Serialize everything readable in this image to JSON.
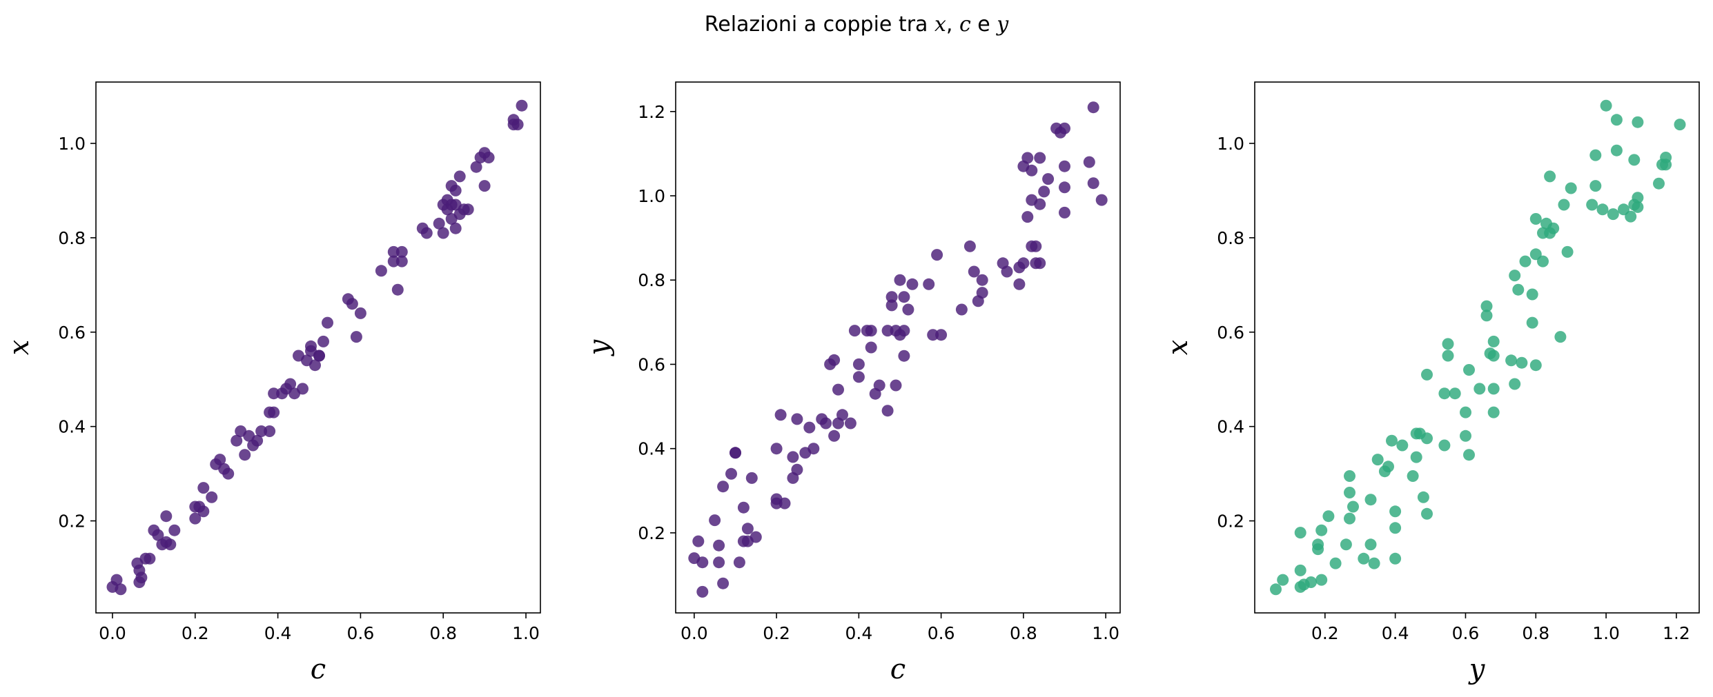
{
  "figure": {
    "title_prefix": "Relazioni a coppie tra ",
    "title_vars": [
      "x",
      ", ",
      "c",
      " e ",
      "y"
    ]
  },
  "colors": {
    "purple": "#4b1d78",
    "green": "#2eaa7c"
  },
  "chart_data": [
    {
      "type": "scatter",
      "title": "",
      "xlabel": "c",
      "ylabel": "x",
      "color": "#4b1d78",
      "xlim": [
        -0.04,
        1.035
      ],
      "ylim": [
        0.005,
        1.13
      ],
      "xticks": [
        "0.0",
        "0.2",
        "0.4",
        "0.6",
        "0.8",
        "1.0"
      ],
      "yticks": [
        "0.2",
        "0.4",
        "0.6",
        "0.8",
        "1.0"
      ],
      "points": [
        [
          0.0,
          0.06
        ],
        [
          0.01,
          0.075
        ],
        [
          0.02,
          0.055
        ],
        [
          0.06,
          0.11
        ],
        [
          0.065,
          0.095
        ],
        [
          0.07,
          0.08
        ],
        [
          0.065,
          0.07
        ],
        [
          0.08,
          0.12
        ],
        [
          0.09,
          0.12
        ],
        [
          0.1,
          0.18
        ],
        [
          0.11,
          0.17
        ],
        [
          0.12,
          0.15
        ],
        [
          0.13,
          0.21
        ],
        [
          0.13,
          0.155
        ],
        [
          0.14,
          0.15
        ],
        [
          0.15,
          0.18
        ],
        [
          0.2,
          0.205
        ],
        [
          0.2,
          0.23
        ],
        [
          0.21,
          0.23
        ],
        [
          0.22,
          0.27
        ],
        [
          0.22,
          0.22
        ],
        [
          0.24,
          0.25
        ],
        [
          0.25,
          0.32
        ],
        [
          0.26,
          0.33
        ],
        [
          0.27,
          0.31
        ],
        [
          0.28,
          0.3
        ],
        [
          0.3,
          0.37
        ],
        [
          0.31,
          0.39
        ],
        [
          0.32,
          0.34
        ],
        [
          0.33,
          0.38
        ],
        [
          0.34,
          0.36
        ],
        [
          0.35,
          0.37
        ],
        [
          0.36,
          0.39
        ],
        [
          0.38,
          0.39
        ],
        [
          0.38,
          0.43
        ],
        [
          0.39,
          0.47
        ],
        [
          0.39,
          0.43
        ],
        [
          0.41,
          0.47
        ],
        [
          0.42,
          0.48
        ],
        [
          0.43,
          0.49
        ],
        [
          0.44,
          0.47
        ],
        [
          0.45,
          0.55
        ],
        [
          0.46,
          0.48
        ],
        [
          0.47,
          0.54
        ],
        [
          0.48,
          0.56
        ],
        [
          0.48,
          0.57
        ],
        [
          0.49,
          0.53
        ],
        [
          0.5,
          0.55
        ],
        [
          0.5,
          0.55
        ],
        [
          0.51,
          0.58
        ],
        [
          0.52,
          0.62
        ],
        [
          0.57,
          0.67
        ],
        [
          0.58,
          0.66
        ],
        [
          0.59,
          0.59
        ],
        [
          0.6,
          0.64
        ],
        [
          0.65,
          0.73
        ],
        [
          0.68,
          0.77
        ],
        [
          0.68,
          0.75
        ],
        [
          0.69,
          0.69
        ],
        [
          0.7,
          0.77
        ],
        [
          0.7,
          0.75
        ],
        [
          0.75,
          0.82
        ],
        [
          0.76,
          0.81
        ],
        [
          0.79,
          0.83
        ],
        [
          0.8,
          0.81
        ],
        [
          0.8,
          0.87
        ],
        [
          0.81,
          0.88
        ],
        [
          0.81,
          0.86
        ],
        [
          0.82,
          0.87
        ],
        [
          0.82,
          0.84
        ],
        [
          0.82,
          0.91
        ],
        [
          0.83,
          0.82
        ],
        [
          0.83,
          0.87
        ],
        [
          0.83,
          0.9
        ],
        [
          0.84,
          0.85
        ],
        [
          0.84,
          0.93
        ],
        [
          0.85,
          0.86
        ],
        [
          0.86,
          0.86
        ],
        [
          0.88,
          0.95
        ],
        [
          0.89,
          0.97
        ],
        [
          0.9,
          0.98
        ],
        [
          0.9,
          0.91
        ],
        [
          0.91,
          0.97
        ],
        [
          0.97,
          1.04
        ],
        [
          0.97,
          1.05
        ],
        [
          0.98,
          1.04
        ],
        [
          0.99,
          1.08
        ]
      ]
    },
    {
      "type": "scatter",
      "title": "",
      "xlabel": "c",
      "ylabel": "y",
      "color": "#4b1d78",
      "xlim": [
        -0.045,
        1.035
      ],
      "ylim": [
        0.01,
        1.27
      ],
      "xticks": [
        "0.0",
        "0.2",
        "0.4",
        "0.6",
        "0.8",
        "1.0"
      ],
      "yticks": [
        "0.2",
        "0.4",
        "0.6",
        "0.8",
        "1.0",
        "1.2"
      ],
      "points": [
        [
          0.0,
          0.14
        ],
        [
          0.01,
          0.18
        ],
        [
          0.02,
          0.06
        ],
        [
          0.02,
          0.13
        ],
        [
          0.05,
          0.23
        ],
        [
          0.06,
          0.17
        ],
        [
          0.06,
          0.13
        ],
        [
          0.07,
          0.31
        ],
        [
          0.07,
          0.08
        ],
        [
          0.09,
          0.34
        ],
        [
          0.1,
          0.39
        ],
        [
          0.1,
          0.39
        ],
        [
          0.11,
          0.13
        ],
        [
          0.12,
          0.18
        ],
        [
          0.12,
          0.26
        ],
        [
          0.13,
          0.18
        ],
        [
          0.13,
          0.21
        ],
        [
          0.14,
          0.33
        ],
        [
          0.15,
          0.19
        ],
        [
          0.2,
          0.27
        ],
        [
          0.2,
          0.28
        ],
        [
          0.2,
          0.4
        ],
        [
          0.21,
          0.48
        ],
        [
          0.22,
          0.27
        ],
        [
          0.24,
          0.33
        ],
        [
          0.24,
          0.38
        ],
        [
          0.25,
          0.35
        ],
        [
          0.25,
          0.47
        ],
        [
          0.27,
          0.39
        ],
        [
          0.28,
          0.45
        ],
        [
          0.29,
          0.4
        ],
        [
          0.31,
          0.47
        ],
        [
          0.32,
          0.46
        ],
        [
          0.33,
          0.6
        ],
        [
          0.34,
          0.61
        ],
        [
          0.34,
          0.43
        ],
        [
          0.35,
          0.46
        ],
        [
          0.35,
          0.54
        ],
        [
          0.36,
          0.48
        ],
        [
          0.38,
          0.46
        ],
        [
          0.39,
          0.68
        ],
        [
          0.4,
          0.6
        ],
        [
          0.4,
          0.57
        ],
        [
          0.42,
          0.68
        ],
        [
          0.43,
          0.68
        ],
        [
          0.43,
          0.64
        ],
        [
          0.44,
          0.53
        ],
        [
          0.45,
          0.55
        ],
        [
          0.47,
          0.49
        ],
        [
          0.47,
          0.68
        ],
        [
          0.48,
          0.76
        ],
        [
          0.48,
          0.74
        ],
        [
          0.49,
          0.68
        ],
        [
          0.49,
          0.55
        ],
        [
          0.5,
          0.8
        ],
        [
          0.5,
          0.67
        ],
        [
          0.51,
          0.62
        ],
        [
          0.51,
          0.76
        ],
        [
          0.51,
          0.68
        ],
        [
          0.52,
          0.73
        ],
        [
          0.53,
          0.79
        ],
        [
          0.57,
          0.79
        ],
        [
          0.58,
          0.67
        ],
        [
          0.59,
          0.86
        ],
        [
          0.6,
          0.67
        ],
        [
          0.65,
          0.73
        ],
        [
          0.67,
          0.88
        ],
        [
          0.68,
          0.82
        ],
        [
          0.69,
          0.75
        ],
        [
          0.7,
          0.77
        ],
        [
          0.7,
          0.8
        ],
        [
          0.75,
          0.84
        ],
        [
          0.76,
          0.82
        ],
        [
          0.79,
          0.79
        ],
        [
          0.79,
          0.83
        ],
        [
          0.8,
          0.84
        ],
        [
          0.8,
          1.07
        ],
        [
          0.81,
          1.09
        ],
        [
          0.81,
          0.95
        ],
        [
          0.82,
          0.99
        ],
        [
          0.82,
          1.06
        ],
        [
          0.82,
          0.88
        ],
        [
          0.83,
          0.84
        ],
        [
          0.83,
          0.88
        ],
        [
          0.84,
          1.09
        ],
        [
          0.84,
          0.84
        ],
        [
          0.84,
          0.98
        ],
        [
          0.85,
          1.01
        ],
        [
          0.86,
          1.04
        ],
        [
          0.88,
          1.16
        ],
        [
          0.89,
          1.15
        ],
        [
          0.9,
          1.07
        ],
        [
          0.9,
          1.02
        ],
        [
          0.9,
          0.96
        ],
        [
          0.9,
          1.16
        ],
        [
          0.96,
          1.08
        ],
        [
          0.97,
          1.03
        ],
        [
          0.97,
          1.21
        ],
        [
          0.99,
          0.99
        ]
      ]
    },
    {
      "type": "scatter",
      "title": "",
      "xlabel": "y",
      "ylabel": "x",
      "color": "#2eaa7c",
      "xlim": [
        0.0,
        1.265
      ],
      "ylim": [
        0.005,
        1.13
      ],
      "xticks": [
        "0.2",
        "0.4",
        "0.6",
        "0.8",
        "1.0",
        "1.2"
      ],
      "yticks": [
        "0.2",
        "0.4",
        "0.6",
        "0.8",
        "1.0"
      ],
      "points": [
        [
          0.06,
          0.055
        ],
        [
          0.08,
          0.075
        ],
        [
          0.13,
          0.06
        ],
        [
          0.13,
          0.095
        ],
        [
          0.13,
          0.175
        ],
        [
          0.14,
          0.065
        ],
        [
          0.16,
          0.07
        ],
        [
          0.18,
          0.15
        ],
        [
          0.18,
          0.14
        ],
        [
          0.19,
          0.075
        ],
        [
          0.19,
          0.18
        ],
        [
          0.21,
          0.21
        ],
        [
          0.23,
          0.11
        ],
        [
          0.26,
          0.15
        ],
        [
          0.27,
          0.205
        ],
        [
          0.27,
          0.295
        ],
        [
          0.27,
          0.26
        ],
        [
          0.28,
          0.23
        ],
        [
          0.31,
          0.12
        ],
        [
          0.33,
          0.15
        ],
        [
          0.33,
          0.245
        ],
        [
          0.34,
          0.11
        ],
        [
          0.35,
          0.33
        ],
        [
          0.37,
          0.305
        ],
        [
          0.38,
          0.315
        ],
        [
          0.39,
          0.37
        ],
        [
          0.4,
          0.12
        ],
        [
          0.4,
          0.185
        ],
        [
          0.4,
          0.22
        ],
        [
          0.42,
          0.36
        ],
        [
          0.45,
          0.295
        ],
        [
          0.46,
          0.385
        ],
        [
          0.46,
          0.335
        ],
        [
          0.47,
          0.385
        ],
        [
          0.48,
          0.25
        ],
        [
          0.49,
          0.375
        ],
        [
          0.49,
          0.215
        ],
        [
          0.49,
          0.51
        ],
        [
          0.54,
          0.36
        ],
        [
          0.54,
          0.47
        ],
        [
          0.55,
          0.55
        ],
        [
          0.55,
          0.575
        ],
        [
          0.57,
          0.47
        ],
        [
          0.6,
          0.43
        ],
        [
          0.6,
          0.38
        ],
        [
          0.61,
          0.34
        ],
        [
          0.61,
          0.52
        ],
        [
          0.64,
          0.48
        ],
        [
          0.66,
          0.635
        ],
        [
          0.66,
          0.655
        ],
        [
          0.67,
          0.555
        ],
        [
          0.68,
          0.55
        ],
        [
          0.68,
          0.48
        ],
        [
          0.68,
          0.58
        ],
        [
          0.68,
          0.43
        ],
        [
          0.73,
          0.54
        ],
        [
          0.74,
          0.49
        ],
        [
          0.74,
          0.72
        ],
        [
          0.75,
          0.69
        ],
        [
          0.76,
          0.535
        ],
        [
          0.77,
          0.75
        ],
        [
          0.79,
          0.68
        ],
        [
          0.79,
          0.62
        ],
        [
          0.8,
          0.84
        ],
        [
          0.8,
          0.53
        ],
        [
          0.8,
          0.765
        ],
        [
          0.82,
          0.81
        ],
        [
          0.82,
          0.75
        ],
        [
          0.83,
          0.83
        ],
        [
          0.84,
          0.93
        ],
        [
          0.84,
          0.81
        ],
        [
          0.85,
          0.82
        ],
        [
          0.87,
          0.59
        ],
        [
          0.88,
          0.87
        ],
        [
          0.89,
          0.77
        ],
        [
          0.9,
          0.905
        ],
        [
          0.96,
          0.87
        ],
        [
          0.97,
          0.975
        ],
        [
          0.97,
          0.91
        ],
        [
          0.99,
          0.86
        ],
        [
          1.0,
          1.08
        ],
        [
          1.02,
          0.85
        ],
        [
          1.03,
          0.985
        ],
        [
          1.03,
          1.05
        ],
        [
          1.05,
          0.86
        ],
        [
          1.07,
          0.845
        ],
        [
          1.08,
          0.87
        ],
        [
          1.08,
          0.965
        ],
        [
          1.09,
          1.045
        ],
        [
          1.09,
          0.885
        ],
        [
          1.09,
          0.865
        ],
        [
          1.15,
          0.915
        ],
        [
          1.16,
          0.955
        ],
        [
          1.17,
          0.97
        ],
        [
          1.17,
          0.955
        ],
        [
          1.21,
          1.04
        ]
      ]
    }
  ]
}
